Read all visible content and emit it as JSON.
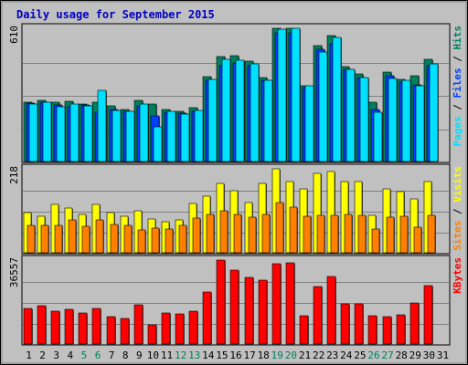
{
  "colors": {
    "hits": "#00805c",
    "files": "#0040ff",
    "pages": "#00e0ff",
    "visits": "#ffff00",
    "sites": "#ff8000",
    "kbytes": "#ff0000",
    "weekday_label": "#000000",
    "weekend_label": "#00805c",
    "title": "#0000c0",
    "panel_bg": "#c0c0c0"
  },
  "chart_data": {
    "type": "bar",
    "title": "Daily usage for September 2015",
    "categories": [
      "1",
      "2",
      "3",
      "4",
      "5",
      "6",
      "7",
      "8",
      "9",
      "10",
      "11",
      "12",
      "13",
      "14",
      "15",
      "16",
      "17",
      "18",
      "19",
      "20",
      "21",
      "22",
      "23",
      "24",
      "25",
      "26",
      "27",
      "28",
      "29",
      "30",
      "31"
    ],
    "weekend_days": [
      "5",
      "6",
      "12",
      "13",
      "19",
      "20",
      "26",
      "27"
    ],
    "panels": [
      {
        "id": "hits_files_pages",
        "ymax_label": "610",
        "ymax": 610,
        "labels": [
          {
            "text": "Pages",
            "color": "#00e0ff"
          },
          {
            "text": " / ",
            "color": "#000000"
          },
          {
            "text": "Files",
            "color": "#0040ff"
          },
          {
            "text": " / ",
            "color": "#000000"
          },
          {
            "text": "Hits",
            "color": "#00805c"
          }
        ],
        "series": [
          {
            "name": "Hits",
            "color": "#00805c",
            "values": [
              270,
              278,
              272,
              275,
              262,
              270,
              255,
              240,
              278,
              262,
              238,
              230,
              245,
              388,
              480,
              485,
              458,
              385,
              610,
              610,
              348,
              532,
              578,
              435,
              400,
              272,
              410,
              378,
              393,
              468,
              null
            ]
          },
          {
            "name": "Files",
            "color": "#0040ff",
            "values": [
              268,
              272,
              260,
              252,
              260,
              225,
              240,
              228,
              255,
              210,
              225,
              220,
              228,
              372,
              440,
              450,
              438,
              370,
              590,
              590,
              340,
              515,
              540,
              420,
              385,
              240,
              392,
              365,
              352,
              440,
              null
            ]
          },
          {
            "name": "Pages",
            "color": "#00e0ff",
            "values": [
              265,
              270,
              252,
              263,
              255,
              326,
              236,
              228,
              265,
              157,
              228,
              218,
              232,
              378,
              470,
              465,
              445,
              372,
              604,
              610,
              348,
              500,
              568,
              420,
              385,
              226,
              380,
              370,
              348,
              448,
              null
            ]
          }
        ]
      },
      {
        "id": "visits_sites",
        "ymax_label": "218",
        "ymax": 218,
        "labels": [
          {
            "text": "Sites",
            "color": "#ff8000"
          },
          {
            "text": " / ",
            "color": "#000000"
          },
          {
            "text": "Visits",
            "color": "#ffff00"
          }
        ],
        "series": [
          {
            "name": "Visits",
            "color": "#ffff00",
            "values": [
              105,
              95,
              125,
              115,
              100,
              125,
              105,
              95,
              110,
              88,
              80,
              85,
              128,
              148,
              180,
              160,
              130,
              180,
              218,
              185,
              165,
              205,
              210,
              185,
              185,
              98,
              165,
              158,
              140,
              185,
              null
            ]
          },
          {
            "name": "Sites",
            "color": "#ff8000",
            "values": [
              70,
              70,
              72,
              85,
              68,
              85,
              74,
              70,
              60,
              65,
              62,
              72,
              90,
              100,
              108,
              100,
              93,
              100,
              130,
              118,
              95,
              98,
              98,
              100,
              98,
              62,
              92,
              95,
              67,
              96,
              null
            ]
          }
        ]
      },
      {
        "id": "kbytes",
        "ymax_label": "36557",
        "ymax": 36557,
        "labels": [
          {
            "text": "KBytes",
            "color": "#ff0000"
          }
        ],
        "series": [
          {
            "name": "KBytes",
            "color": "#ff0000",
            "values": [
              15500,
              16500,
              14500,
              15000,
              13500,
              15500,
              12000,
              11000,
              17000,
              8200,
              13500,
              13000,
              14500,
              22500,
              36557,
              32000,
              29000,
              28000,
              34800,
              35200,
              12500,
              25000,
              29500,
              17500,
              17500,
              12500,
              12000,
              12600,
              17700,
              25300,
              null
            ]
          }
        ]
      }
    ]
  }
}
